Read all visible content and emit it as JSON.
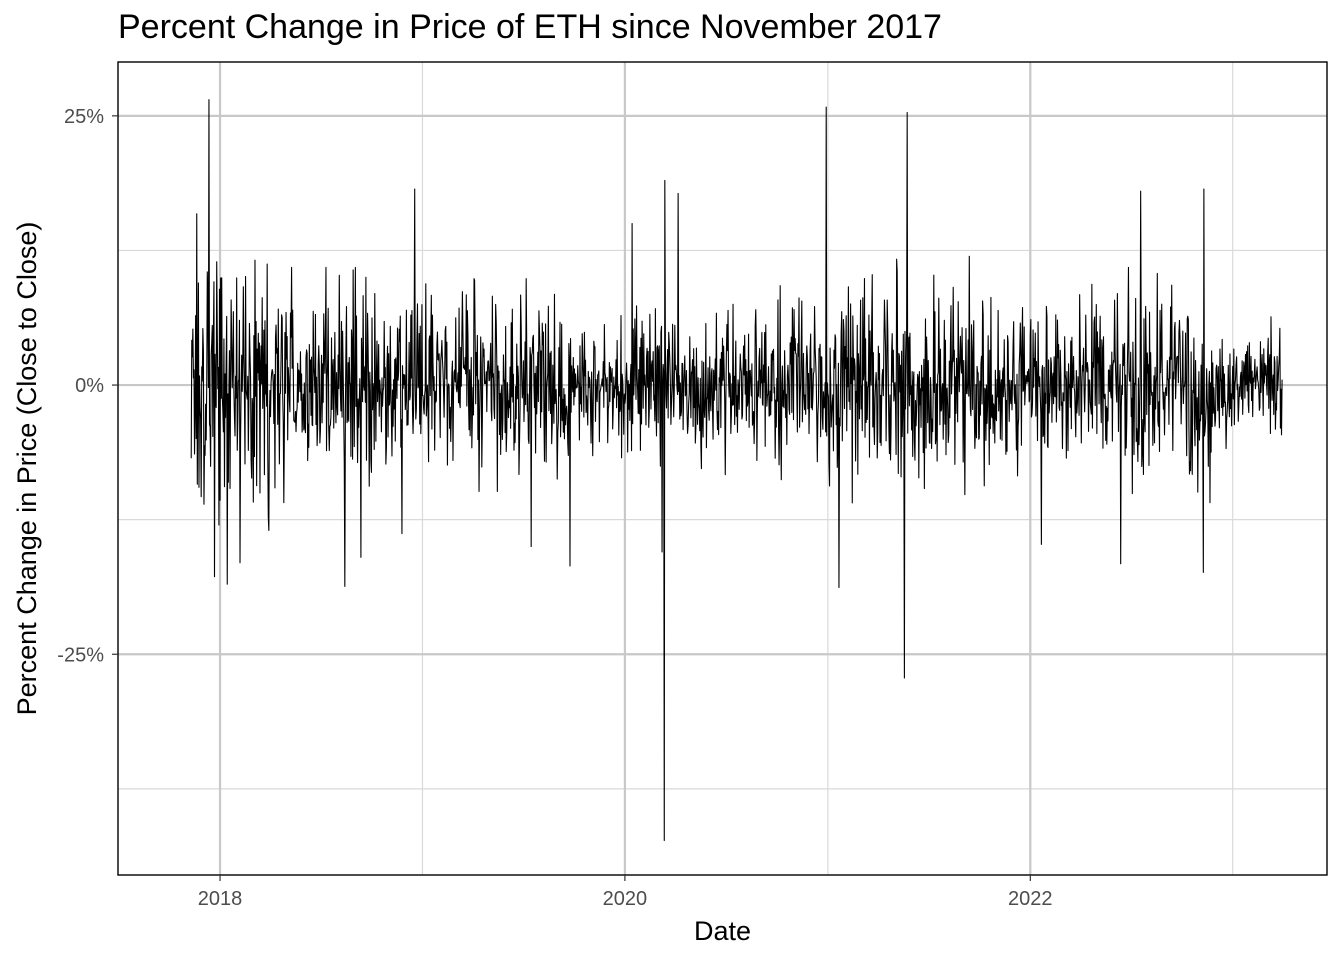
{
  "chart_data": {
    "type": "line",
    "title": "Percent Change in Price of ETH since November 2017",
    "xlabel": "Date",
    "ylabel": "Percent Change in Price (Close to Close)",
    "x_range": [
      "2017-11-10",
      "2023-03-31"
    ],
    "xlim": [
      "2017-07-01",
      "2023-06-20"
    ],
    "ylim": [
      -45.5,
      30.0
    ],
    "x_ticks": [
      {
        "date": "2018-01-01",
        "label": "2018"
      },
      {
        "date": "2020-01-01",
        "label": "2020"
      },
      {
        "date": "2022-01-01",
        "label": "2022"
      }
    ],
    "x_minor_ticks": [
      "2019-01-01",
      "2021-01-01",
      "2023-01-01"
    ],
    "y_ticks": [
      {
        "value": 25,
        "label": "25%"
      },
      {
        "value": 0,
        "label": "0%"
      },
      {
        "value": -25,
        "label": "-25%"
      }
    ],
    "y_minor_ticks": [
      12.5,
      -12.5,
      -37.5
    ],
    "grid": true,
    "line_color": "#000000",
    "series": [
      {
        "name": "",
        "points": [
          {
            "date": "2017-11-10",
            "value": -6.8
          },
          {
            "date": "2017-11-13",
            "value": 5.2
          },
          {
            "date": "2017-11-20",
            "value": 15.9
          },
          {
            "date": "2017-11-24",
            "value": -9.5
          },
          {
            "date": "2017-12-12",
            "value": 26.5
          },
          {
            "date": "2017-12-22",
            "value": -17.8
          },
          {
            "date": "2018-01-14",
            "value": -18.5
          },
          {
            "date": "2018-02-06",
            "value": -16.5
          },
          {
            "date": "2018-03-30",
            "value": -13.5
          },
          {
            "date": "2018-08-14",
            "value": -18.7
          },
          {
            "date": "2018-09-12",
            "value": -16.0
          },
          {
            "date": "2018-11-25",
            "value": -13.8
          },
          {
            "date": "2018-12-18",
            "value": 18.2
          },
          {
            "date": "2019-07-16",
            "value": -15.0
          },
          {
            "date": "2019-09-24",
            "value": -16.8
          },
          {
            "date": "2020-01-14",
            "value": 15.0
          },
          {
            "date": "2020-03-08",
            "value": -15.5
          },
          {
            "date": "2020-03-12",
            "value": -42.3
          },
          {
            "date": "2020-03-13",
            "value": 19.0
          },
          {
            "date": "2020-04-06",
            "value": 17.8
          },
          {
            "date": "2020-12-29",
            "value": 25.8
          },
          {
            "date": "2021-01-21",
            "value": -18.8
          },
          {
            "date": "2021-05-19",
            "value": -27.2
          },
          {
            "date": "2021-05-24",
            "value": 25.3
          },
          {
            "date": "2022-01-21",
            "value": -14.8
          },
          {
            "date": "2022-06-13",
            "value": -16.6
          },
          {
            "date": "2022-07-19",
            "value": 18.0
          },
          {
            "date": "2022-11-09",
            "value": -17.4
          },
          {
            "date": "2022-11-10",
            "value": 18.2
          },
          {
            "date": "2023-03-10",
            "value": -4.5
          },
          {
            "date": "2023-03-31",
            "value": 0.5
          }
        ]
      }
    ]
  }
}
